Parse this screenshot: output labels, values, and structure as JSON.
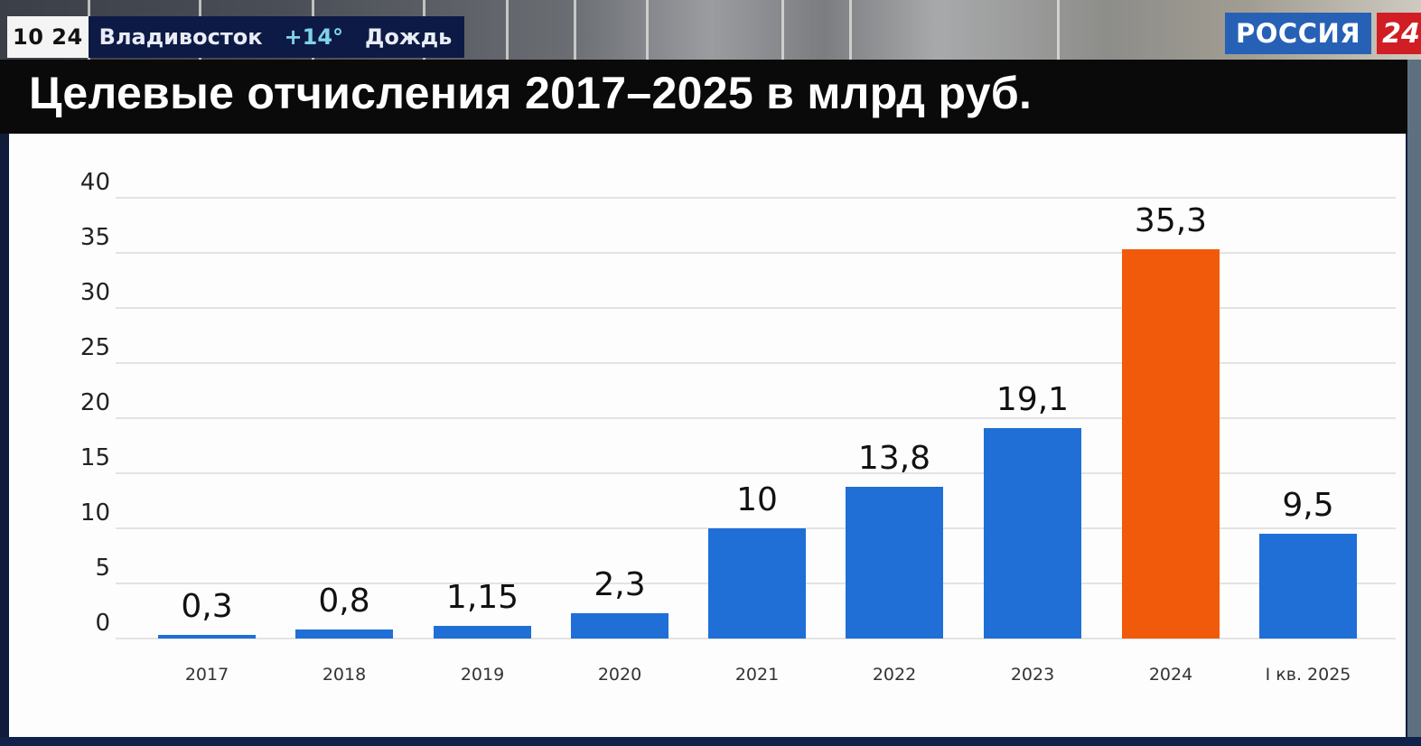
{
  "ticker": {
    "time": "10 24",
    "city": "Владивосток",
    "temperature": "+14°",
    "weather": "Дождь"
  },
  "channel_logo": {
    "name": "РОССИЯ",
    "number": "24",
    "name_bg": "#2761b5",
    "number_bg": "#d01e24"
  },
  "title": "Целевые отчисления 2017–2025 в млрд руб.",
  "chart_data": {
    "type": "bar",
    "title": "Целевые отчисления 2017–2025 в млрд руб.",
    "xlabel": "",
    "ylabel": "",
    "categories": [
      "2017",
      "2018",
      "2019",
      "2020",
      "2021",
      "2022",
      "2023",
      "2024",
      "I кв. 2025"
    ],
    "values": [
      0.3,
      0.8,
      1.15,
      2.3,
      10,
      13.8,
      19.1,
      35.3,
      9.5
    ],
    "value_labels": [
      "0,3",
      "0,8",
      "1,15",
      "2,3",
      "10",
      "13,8",
      "19,1",
      "35,3",
      "9,5"
    ],
    "bar_colors": [
      "#1f6fd6",
      "#1f6fd6",
      "#1f6fd6",
      "#1f6fd6",
      "#1f6fd6",
      "#1f6fd6",
      "#1f6fd6",
      "#f05a0a",
      "#1f6fd6"
    ],
    "ylim": [
      0,
      40
    ],
    "yticks": [
      "0",
      "5",
      "10",
      "15",
      "20",
      "25",
      "30",
      "35",
      "40"
    ],
    "grid": true,
    "legend": "none",
    "highlight_category": "2024"
  }
}
